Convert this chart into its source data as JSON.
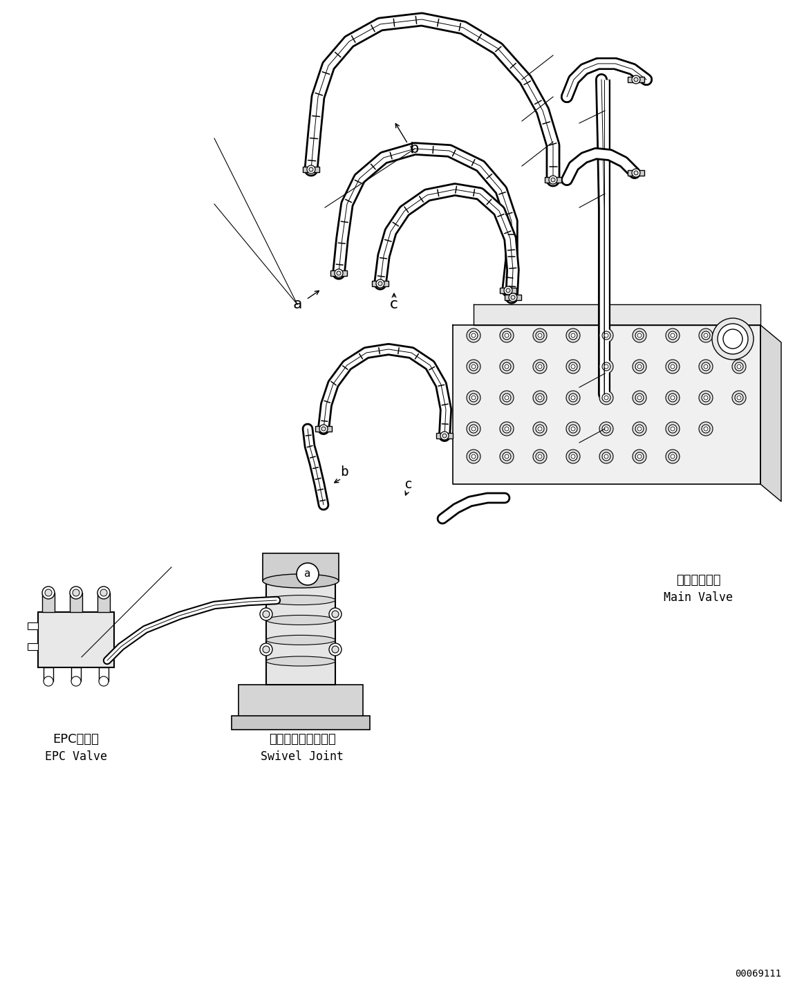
{
  "background_color": "#ffffff",
  "line_color": "#000000",
  "labels": {
    "epc_valve_jp": "EPCバルブ",
    "epc_valve_en": "EPC Valve",
    "swivel_joint_jp": "スイベルジョイント",
    "swivel_joint_en": "Swivel Joint",
    "main_valve_jp": "メインバルブ",
    "main_valve_en": "Main Valve",
    "part_number": "00069111"
  },
  "figsize": [
    11.63,
    14.43
  ],
  "dpi": 100
}
